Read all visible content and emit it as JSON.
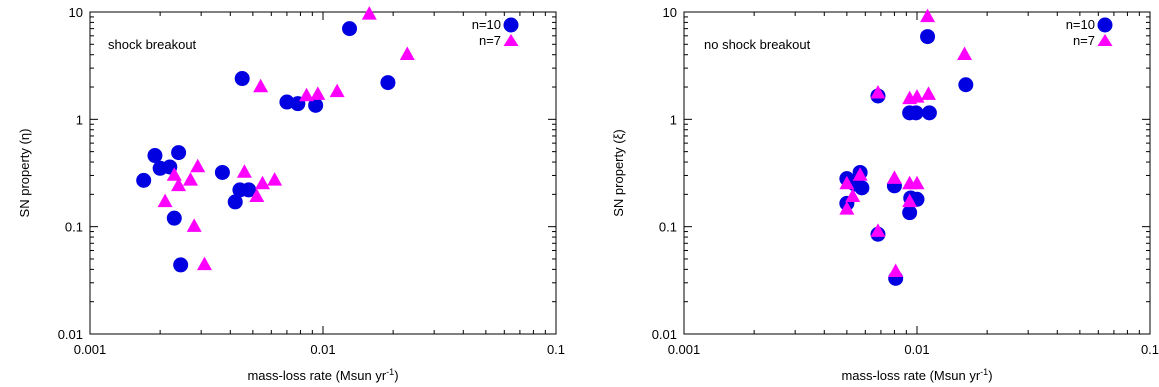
{
  "colors": {
    "n10": "#0000e0",
    "n7": "#ff00ff"
  },
  "chart_data": [
    {
      "type": "scatter",
      "xscale": "log",
      "yscale": "log",
      "xlim": [
        0.001,
        0.1
      ],
      "ylim": [
        0.01,
        10
      ],
      "xticks": [
        0.001,
        0.01,
        0.1
      ],
      "xtick_labels": [
        "0.001",
        "0.01",
        "0.1"
      ],
      "yticks": [
        0.01,
        0.1,
        1,
        10
      ],
      "ytick_labels": [
        "0.01",
        "0.1",
        "1",
        "10"
      ],
      "xlabel": "mass-loss rate (Msun yr",
      "xlabel_sup": "-1",
      "xlabel_end": ")",
      "ylabel": "SN property (η)",
      "annotation": "shock breakout",
      "grid": false,
      "legend": "top-right",
      "series": [
        {
          "name": "n=10",
          "marker": "circle",
          "color": "#0000e0",
          "points": [
            [
              0.0017,
              0.27
            ],
            [
              0.0019,
              0.46
            ],
            [
              0.002,
              0.35
            ],
            [
              0.0022,
              0.36
            ],
            [
              0.0023,
              0.12
            ],
            [
              0.0024,
              0.49
            ],
            [
              0.00245,
              0.044
            ],
            [
              0.0037,
              0.32
            ],
            [
              0.0042,
              0.17
            ],
            [
              0.0044,
              0.22
            ],
            [
              0.0045,
              2.4
            ],
            [
              0.0048,
              0.22
            ],
            [
              0.007,
              1.45
            ],
            [
              0.0078,
              1.4
            ],
            [
              0.0093,
              1.35
            ],
            [
              0.013,
              7.0
            ],
            [
              0.019,
              2.2
            ]
          ]
        },
        {
          "name": "n=7",
          "marker": "triangle",
          "color": "#ff00ff",
          "points": [
            [
              0.0021,
              0.17
            ],
            [
              0.0023,
              0.3
            ],
            [
              0.0024,
              0.24
            ],
            [
              0.0027,
              0.27
            ],
            [
              0.0028,
              0.1
            ],
            [
              0.0029,
              0.36
            ],
            [
              0.0031,
              0.044
            ],
            [
              0.0046,
              0.32
            ],
            [
              0.0052,
              0.19
            ],
            [
              0.0054,
              2.0
            ],
            [
              0.0055,
              0.25
            ],
            [
              0.0062,
              0.27
            ],
            [
              0.0085,
              1.65
            ],
            [
              0.0095,
              1.7
            ],
            [
              0.0115,
              1.8
            ],
            [
              0.0158,
              9.5
            ],
            [
              0.023,
              4.0
            ]
          ]
        }
      ]
    },
    {
      "type": "scatter",
      "xscale": "log",
      "yscale": "log",
      "xlim": [
        0.001,
        0.1
      ],
      "ylim": [
        0.01,
        10
      ],
      "xticks": [
        0.001,
        0.01,
        0.1
      ],
      "xtick_labels": [
        "0.001",
        "0.01",
        "0.1"
      ],
      "yticks": [
        0.01,
        0.1,
        1,
        10
      ],
      "ytick_labels": [
        "0.01",
        "0.1",
        "1",
        "10"
      ],
      "xlabel": "mass-loss rate (Msun yr",
      "xlabel_sup": "-1",
      "xlabel_end": ")",
      "ylabel": "SN property (ξ)",
      "annotation": "no shock breakout",
      "grid": false,
      "legend": "top-right",
      "series": [
        {
          "name": "n=10",
          "marker": "circle",
          "color": "#0000e0",
          "points": [
            [
              0.005,
              0.28
            ],
            [
              0.005,
              0.165
            ],
            [
              0.0054,
              0.25
            ],
            [
              0.0057,
              0.32
            ],
            [
              0.0058,
              0.23
            ],
            [
              0.0068,
              1.65
            ],
            [
              0.0068,
              0.085
            ],
            [
              0.008,
              0.24
            ],
            [
              0.0081,
              0.033
            ],
            [
              0.0093,
              1.15
            ],
            [
              0.0093,
              0.135
            ],
            [
              0.0094,
              0.185
            ],
            [
              0.0099,
              1.15
            ],
            [
              0.01,
              0.18
            ],
            [
              0.0111,
              5.9
            ],
            [
              0.0113,
              1.15
            ],
            [
              0.0162,
              2.1
            ]
          ]
        },
        {
          "name": "n=7",
          "marker": "triangle",
          "color": "#ff00ff",
          "points": [
            [
              0.005,
              0.25
            ],
            [
              0.005,
              0.145
            ],
            [
              0.0053,
              0.19
            ],
            [
              0.0057,
              0.3
            ],
            [
              0.0068,
              1.75
            ],
            [
              0.0068,
              0.09
            ],
            [
              0.008,
              0.28
            ],
            [
              0.0081,
              0.038
            ],
            [
              0.0093,
              1.55
            ],
            [
              0.0093,
              0.25
            ],
            [
              0.0093,
              0.17
            ],
            [
              0.01,
              1.6
            ],
            [
              0.01,
              0.25
            ],
            [
              0.0111,
              9.0
            ],
            [
              0.0112,
              1.7
            ],
            [
              0.016,
              4.0
            ]
          ]
        }
      ]
    }
  ]
}
